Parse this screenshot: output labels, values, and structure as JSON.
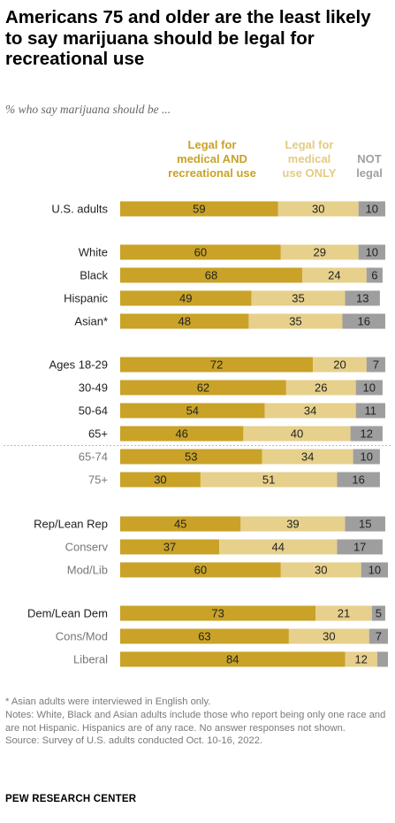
{
  "title": "Americans 75 and older are the least likely to say marijuana should be legal for recreational use",
  "subtitle": "% who say marijuana should be ...",
  "legend": {
    "col1": [
      "Legal for",
      "medical AND",
      "recreational use"
    ],
    "col2": [
      "Legal for",
      "medical",
      "use ONLY"
    ],
    "col3": [
      "NOT",
      "legal"
    ]
  },
  "colors": {
    "both": "#c9a227",
    "medical": "#e6d08c",
    "not": "#9e9e9e",
    "label_subgroup": "#777777",
    "label_main": "#222222"
  },
  "chart_data": {
    "type": "bar",
    "stacked": true,
    "orientation": "horizontal",
    "xlim": [
      0,
      100
    ],
    "categories": [
      "U.S. adults",
      "White",
      "Black",
      "Hispanic",
      "Asian*",
      "Ages 18-29",
      "30-49",
      "50-64",
      "65+",
      "65-74",
      "75+",
      "Rep/Lean Rep",
      "Conserv",
      "Mod/Lib",
      "Dem/Lean Dem",
      "Cons/Mod",
      "Liberal"
    ],
    "subgroup": [
      false,
      false,
      false,
      false,
      false,
      false,
      false,
      false,
      false,
      true,
      true,
      false,
      true,
      true,
      false,
      true,
      true
    ],
    "series": [
      {
        "name": "Legal for medical AND recreational use",
        "values": [
          59,
          60,
          68,
          49,
          48,
          72,
          62,
          54,
          46,
          53,
          30,
          45,
          37,
          60,
          73,
          63,
          84
        ]
      },
      {
        "name": "Legal for medical use ONLY",
        "values": [
          30,
          29,
          24,
          35,
          35,
          20,
          26,
          34,
          40,
          34,
          51,
          39,
          44,
          30,
          21,
          30,
          12
        ]
      },
      {
        "name": "NOT legal",
        "values": [
          10,
          10,
          6,
          13,
          16,
          7,
          10,
          11,
          12,
          10,
          16,
          15,
          17,
          10,
          5,
          7,
          null
        ]
      }
    ]
  },
  "footnotes": [
    "* Asian adults were interviewed in English only.",
    "Notes: White, Black and Asian adults include those who report being only one race and are not Hispanic. Hispanics are of any race. No answer responses not shown.",
    "Source: Survey of U.S. adults conducted Oct. 10-16, 2022."
  ],
  "source_org": "PEW RESEARCH CENTER"
}
